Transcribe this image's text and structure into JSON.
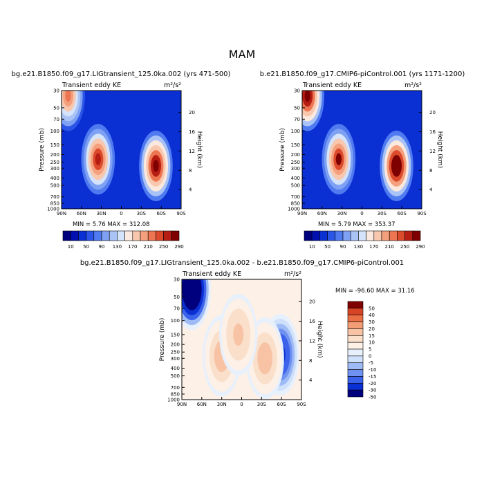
{
  "figure": {
    "suptitle": "MAM"
  },
  "colors": {
    "scale": [
      "#00007f",
      "#0010b0",
      "#0a2fd2",
      "#2a55e6",
      "#4f7af0",
      "#7fa1f4",
      "#a9c3f7",
      "#d4e3fa",
      "#fbe8de",
      "#f8c7ad",
      "#f4a07e",
      "#ee7552",
      "#dc4a2c",
      "#b61e14",
      "#7f0000"
    ],
    "diff": [
      "#00007f",
      "#0a2fd2",
      "#3b62ea",
      "#6f92f2",
      "#9fbbf6",
      "#cfe0fa",
      "#e8f0fc",
      "#fdf0e6",
      "#fadfcb",
      "#f7c3a4",
      "#f29d76",
      "#ea6f45",
      "#d64426",
      "#7f0000"
    ]
  },
  "panel_common": {
    "left_title": "Transient eddy KE",
    "units": "m²/s²",
    "ylabel": "Pressure (mb)",
    "y2label": "Height (km)",
    "xticks": [
      "90N",
      "60N",
      "30N",
      "0",
      "30S",
      "60S",
      "90S"
    ],
    "pressure_ticks": [
      "30",
      "50",
      "70",
      "100",
      "150",
      "200",
      "250",
      "300",
      "400",
      "500",
      "700",
      "850",
      "1000"
    ],
    "height_ticks": [
      "20",
      "16",
      "12",
      "8",
      "4"
    ]
  },
  "panels": [
    {
      "title": "bg.e21.B1850.f09_g17.LIGtransient_125.0ka.002 (yrs 471-500)",
      "minmax": "MIN =    5.76   MAX =  312.08"
    },
    {
      "title": "b.e21.B1850.f09_g17.CMIP6-piControl.001 (yrs 1171-1200)",
      "minmax": "MIN =    5.79   MAX =  353.37"
    },
    {
      "title": "bg.e21.B1850.f09_g17.LIGtransient_125.0ka.002 - b.e21.B1850.f09_g17.CMIP6-piControl.001",
      "minmax": "MIN = -96.60   MAX =  31.16"
    }
  ],
  "legend_scale": [
    "10",
    "50",
    "90",
    "130",
    "170",
    "210",
    "250",
    "290"
  ],
  "legend_diff": [
    "50",
    "40",
    "30",
    "20",
    "15",
    "10",
    "5",
    "0",
    "-5",
    "-10",
    "-15",
    "-20",
    "-30",
    "-50"
  ],
  "chart_data": [
    {
      "type": "heatmap",
      "title": "bg.e21.B1850.f09_g17.LIGtransient_125.0ka.002 (yrs 471-500)",
      "variable": "Transient eddy KE",
      "units": "m2/s2",
      "x": [
        "90N",
        "60N",
        "30N",
        "0",
        "30S",
        "60S",
        "90S"
      ],
      "ylabel": "Pressure (mb)",
      "xlim": [
        90,
        -90
      ],
      "ylim": [
        1000,
        30
      ],
      "y_scale": "log",
      "levels": [
        10,
        30,
        50,
        70,
        90,
        110,
        130,
        150,
        170,
        190,
        210,
        230,
        250,
        270,
        290
      ],
      "min": 5.76,
      "max": 312.08,
      "features": [
        {
          "lat": -52,
          "p": 280,
          "value": 300
        },
        {
          "lat": 35,
          "p": 230,
          "value": 270
        },
        {
          "lat": 80,
          "p": 35,
          "value": 230
        }
      ]
    },
    {
      "type": "heatmap",
      "title": "b.e21.B1850.f09_g17.CMIP6-piControl.001 (yrs 1171-1200)",
      "variable": "Transient eddy KE",
      "units": "m2/s2",
      "x": [
        "90N",
        "60N",
        "30N",
        "0",
        "30S",
        "60S",
        "90S"
      ],
      "ylabel": "Pressure (mb)",
      "xlim": [
        90,
        -90
      ],
      "ylim": [
        1000,
        30
      ],
      "y_scale": "log",
      "levels": [
        10,
        30,
        50,
        70,
        90,
        110,
        130,
        150,
        170,
        190,
        210,
        230,
        250,
        270,
        290
      ],
      "min": 5.79,
      "max": 353.37,
      "features": [
        {
          "lat": -52,
          "p": 280,
          "value": 330
        },
        {
          "lat": 35,
          "p": 230,
          "value": 275
        },
        {
          "lat": 82,
          "p": 35,
          "value": 300
        }
      ]
    },
    {
      "type": "heatmap",
      "title": "bg.e21.B1850.f09_g17.LIGtransient_125.0ka.002 - b.e21.B1850.f09_g17.CMIP6-piControl.001",
      "variable": "Transient eddy KE",
      "units": "m2/s2",
      "x": [
        "90N",
        "60N",
        "30N",
        "0",
        "30S",
        "60S",
        "90S"
      ],
      "ylabel": "Pressure (mb)",
      "xlim": [
        90,
        -90
      ],
      "ylim": [
        1000,
        30
      ],
      "y_scale": "log",
      "levels": [
        -50,
        -30,
        -20,
        -15,
        -10,
        -5,
        0,
        5,
        10,
        15,
        20,
        30,
        40,
        50
      ],
      "min": -96.6,
      "max": 31.16,
      "features": [
        {
          "lat": 75,
          "p": 40,
          "value": -90
        },
        {
          "lat": -58,
          "p": 270,
          "value": -35
        },
        {
          "lat": 30,
          "p": 280,
          "value": 15
        },
        {
          "lat": -35,
          "p": 300,
          "value": 15
        },
        {
          "lat": 5,
          "p": 150,
          "value": 12
        }
      ]
    }
  ]
}
